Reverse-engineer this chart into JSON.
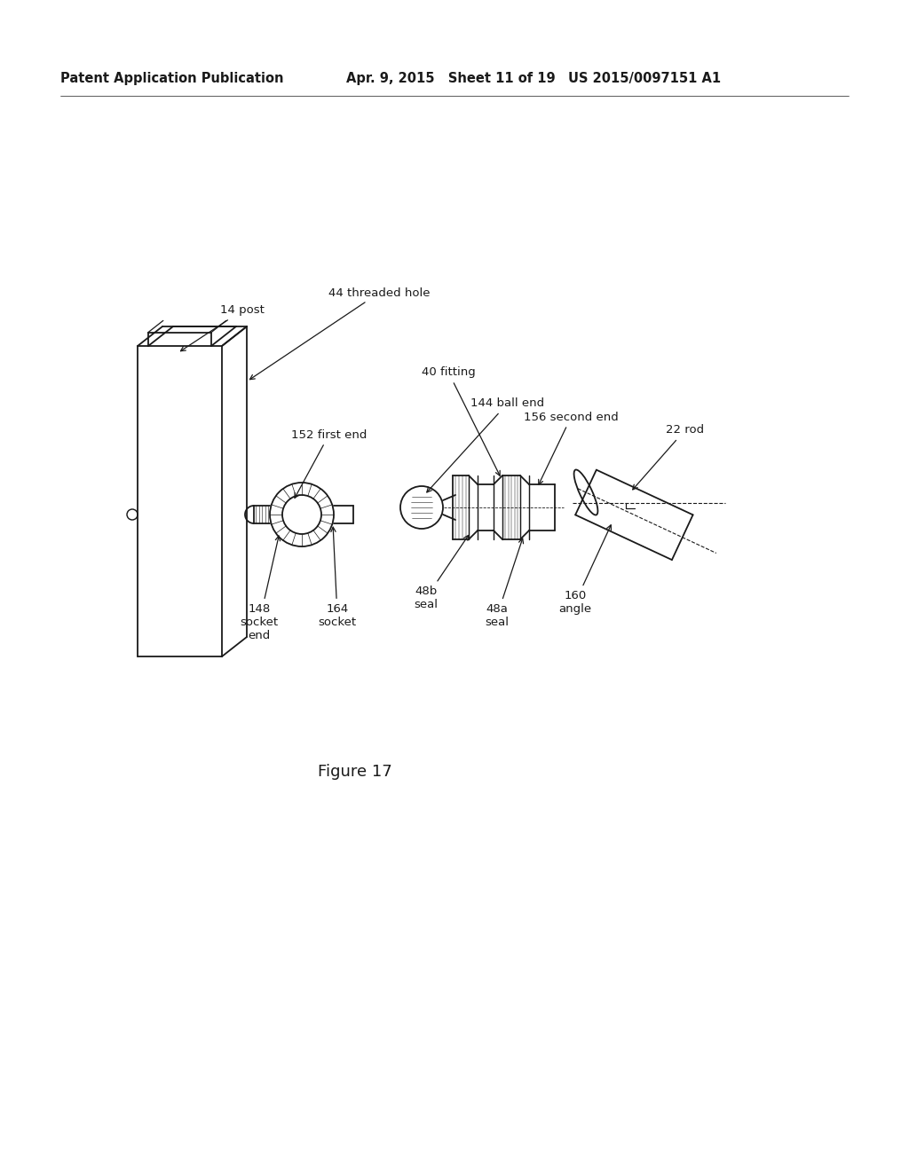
{
  "background_color": "#ffffff",
  "header_left": "Patent Application Publication",
  "header_middle": "Apr. 9, 2015   Sheet 11 of 19",
  "header_right": "US 2015/0097151 A1",
  "figure_caption": "Figure 17",
  "line_color": "#1a1a1a",
  "text_color": "#1a1a1a",
  "font_size_header": 10.5,
  "font_size_label": 9.5,
  "font_size_caption": 13
}
